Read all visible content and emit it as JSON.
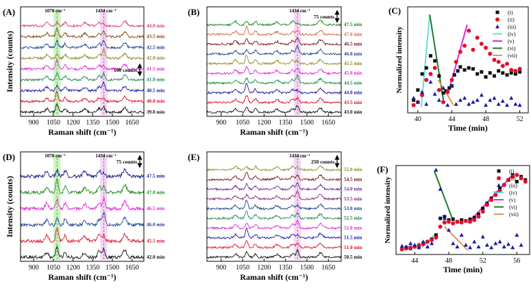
{
  "figure": {
    "axis_labels": {
      "raman_x": "Raman shift (cm⁻¹)",
      "raman_y": "Intensity (counts)",
      "kin_x": "Time (min)",
      "kin_y": "Normalized intensity"
    },
    "peak_labels": {
      "p1078": "1078 cm⁻¹",
      "p1434": "1434 cm⁻¹"
    }
  },
  "chart_data": [
    {
      "panel": "(A)",
      "type": "line",
      "subtype": "stacked_spectra",
      "xlabel": "Raman shift (cm⁻¹)",
      "ylabel": "Intensity (counts)",
      "xlim": [
        800,
        1740
      ],
      "xticks": [
        900,
        1050,
        1200,
        1350,
        1500,
        1650
      ],
      "highlight_bands": [
        1078,
        1434
      ],
      "peak_annotations": [
        "1078 cm⁻¹",
        "1434 cm⁻¹"
      ],
      "scale_bar": "100 counts",
      "series": [
        {
          "name": "44.0 min",
          "color": "#d8416b"
        },
        {
          "name": "43.5 min",
          "color": "#8b4513"
        },
        {
          "name": "42.5 min",
          "color": "#1f3f8f"
        },
        {
          "name": "42.0 min",
          "color": "#8a8a2a"
        },
        {
          "name": "41.5 min",
          "color": "#e627d6"
        },
        {
          "name": "41.0 min",
          "color": "#1e8a4e"
        },
        {
          "name": "40.5 min",
          "color": "#1a1aa8"
        },
        {
          "name": "40.0 min",
          "color": "#e0102a"
        },
        {
          "name": "39.0 min",
          "color": "#111111"
        }
      ]
    },
    {
      "panel": "(B)",
      "type": "line",
      "subtype": "stacked_spectra",
      "xlabel": "Raman shift (cm⁻¹)",
      "ylabel": "",
      "xlim": [
        800,
        1740
      ],
      "xticks": [
        900,
        1050,
        1200,
        1350,
        1500,
        1650
      ],
      "highlight_bands": [
        1434
      ],
      "peak_annotations": [
        "1434 cm⁻¹"
      ],
      "scale_bar": "75 counts",
      "series": [
        {
          "name": "47.5 min",
          "color": "#1e8a1e"
        },
        {
          "name": "47.0 min",
          "color": "#d2693c"
        },
        {
          "name": "46.5 min",
          "color": "#7a1020"
        },
        {
          "name": "46.0 min",
          "color": "#1f3f8f"
        },
        {
          "name": "45.5 min",
          "color": "#8a8a2a"
        },
        {
          "name": "45.0 min",
          "color": "#e627d6"
        },
        {
          "name": "44.5 min",
          "color": "#1e8a4e"
        },
        {
          "name": "44.0 min",
          "color": "#1a1aa8"
        },
        {
          "name": "43.5 min",
          "color": "#e0102a"
        },
        {
          "name": "43.0 min",
          "color": "#111111"
        }
      ]
    },
    {
      "panel": "(C)",
      "type": "scatter",
      "xlabel": "Time (min)",
      "ylabel": "Normalized intensity",
      "xlim": [
        38.8,
        53
      ],
      "xticks": [
        40,
        44,
        48,
        52
      ],
      "ylim": [
        0,
        1
      ],
      "series": [
        {
          "name": "(i)",
          "marker": "square",
          "color": "#111111",
          "x": [
            39.5,
            40.0,
            40.5,
            41.0,
            41.5,
            42.0,
            42.5,
            43.0,
            43.3,
            43.7,
            44.0,
            44.3,
            44.7,
            45.0,
            45.5,
            46.0,
            46.5,
            47.0,
            47.5,
            48.0,
            48.5,
            49.0,
            49.5,
            50.0,
            50.5,
            51.0,
            51.5,
            52.0
          ],
          "y": [
            0.1,
            0.2,
            0.36,
            0.42,
            0.54,
            0.49,
            0.34,
            0.17,
            0.19,
            0.22,
            0.24,
            0.35,
            0.39,
            0.43,
            0.4,
            0.42,
            0.41,
            0.36,
            0.38,
            0.33,
            0.37,
            0.34,
            0.39,
            0.37,
            0.35,
            0.37,
            0.36,
            0.38
          ]
        },
        {
          "name": "(ii)",
          "marker": "circle",
          "color": "#e0102a",
          "x": [
            39.5,
            40.0,
            40.5,
            41.0,
            41.5,
            42.0,
            42.5,
            43.0,
            43.5,
            44.0,
            44.5,
            45.0,
            45.5,
            46.0,
            46.5,
            47.0,
            47.5,
            48.0,
            48.5,
            49.0,
            49.5,
            50.0,
            50.5,
            51.0,
            51.5,
            52.0
          ],
          "y": [
            0.05,
            0.08,
            0.15,
            0.3,
            0.36,
            0.42,
            0.2,
            0.08,
            0.18,
            0.3,
            0.48,
            0.58,
            0.64,
            0.79,
            0.6,
            0.72,
            0.66,
            0.62,
            0.56,
            0.5,
            0.48,
            0.44,
            0.46,
            0.4,
            0.39,
            0.41
          ]
        },
        {
          "name": "(iii)",
          "marker": "triangle",
          "color": "#1a1aa8",
          "x": [
            39.5,
            40.0,
            40.5,
            41.0,
            41.5,
            42.0,
            42.5,
            43.0,
            43.5,
            44.0,
            44.5,
            45.0,
            45.5,
            46.0,
            46.5,
            47.0,
            47.5,
            48.0,
            48.5,
            49.0,
            49.5,
            50.0,
            50.5,
            51.0,
            51.5,
            52.0
          ],
          "y": [
            0.12,
            0.08,
            0.18,
            0.06,
            0.28,
            0.16,
            0.1,
            0.22,
            0.05,
            0.24,
            0.06,
            0.1,
            0.12,
            0.06,
            0.08,
            0.1,
            0.15,
            0.05,
            0.1,
            0.12,
            0.06,
            0.09,
            0.05,
            0.12,
            0.06,
            0.05
          ]
        },
        {
          "name": "(iv)",
          "marker": "line",
          "color": "#5ee0e0",
          "x": [
            40.4,
            41.4
          ],
          "y": [
            0.03,
            0.95
          ]
        },
        {
          "name": "(v)",
          "marker": "line",
          "color": "#e627d6",
          "x": [
            43.6,
            45.8
          ],
          "y": [
            0.18,
            0.85
          ]
        },
        {
          "name": "(vi)",
          "marker": "line",
          "color": "#1e7a2a",
          "x": [
            41.4,
            43.0
          ],
          "y": [
            0.95,
            0.1
          ]
        },
        {
          "name": "(vii)",
          "marker": "line",
          "color": "#e8905a",
          "x": [
            42.4,
            44.2
          ],
          "y": [
            0.3,
            0.05
          ]
        }
      ]
    },
    {
      "panel": "(D)",
      "type": "line",
      "subtype": "stacked_spectra",
      "xlabel": "Raman shift (cm⁻¹)",
      "ylabel": "Intensity (counts)",
      "xlim": [
        800,
        1740
      ],
      "xticks": [
        900,
        1050,
        1200,
        1350,
        1500,
        1650
      ],
      "highlight_bands": [
        1078,
        1434
      ],
      "peak_annotations": [
        "1078 cm⁻¹",
        "1434 cm⁻¹"
      ],
      "scale_bar": "75 counts",
      "series": [
        {
          "name": "47.5 min",
          "color": "#1a1a8a"
        },
        {
          "name": "47.0 min",
          "color": "#1e8a1e"
        },
        {
          "name": "46.5 min",
          "color": "#e627d6"
        },
        {
          "name": "46.0 min",
          "color": "#1f3f8f"
        },
        {
          "name": "45.5 min",
          "color": "#e0102a"
        },
        {
          "name": "42.0 min",
          "color": "#111111"
        }
      ]
    },
    {
      "panel": "(E)",
      "type": "line",
      "subtype": "stacked_spectra",
      "xlabel": "Raman shift (cm⁻¹)",
      "ylabel": "",
      "xlim": [
        800,
        1740
      ],
      "xticks": [
        900,
        1050,
        1200,
        1350,
        1500,
        1650
      ],
      "highlight_bands": [
        1434
      ],
      "peak_annotations": [
        "1434 cm⁻¹"
      ],
      "scale_bar": "250 counts",
      "series": [
        {
          "name": "55.0 min",
          "color": "#8a8a2a"
        },
        {
          "name": "54.5 min",
          "color": "#7a1020"
        },
        {
          "name": "54.0 min",
          "color": "#6a2a9a"
        },
        {
          "name": "53.5 min",
          "color": "#8a2a7a"
        },
        {
          "name": "53.0 min",
          "color": "#1f3f8f"
        },
        {
          "name": "52.5 min",
          "color": "#1e8a4e"
        },
        {
          "name": "52.0 min",
          "color": "#e627d6"
        },
        {
          "name": "51.5 min",
          "color": "#1a1aa8"
        },
        {
          "name": "51.0 min",
          "color": "#e0102a"
        },
        {
          "name": "50.5 min",
          "color": "#111111"
        }
      ]
    },
    {
      "panel": "(F)",
      "type": "scatter",
      "xlabel": "Time (min)",
      "ylabel": "Normalized intensity",
      "xlim": [
        41.8,
        57.5
      ],
      "xticks": [
        44,
        48,
        52,
        56
      ],
      "ylim": [
        0,
        1
      ],
      "series": [
        {
          "name": "(i)",
          "marker": "square",
          "color": "#111111",
          "x": [
            42.5,
            43.0,
            43.5,
            44.0,
            44.5,
            45.0,
            45.5,
            46.0,
            46.5,
            47.0,
            47.5,
            48.0,
            48.5,
            49.0,
            49.5,
            50.0,
            50.5,
            51.0,
            51.5,
            52.0,
            52.5,
            53.0,
            53.5,
            54.0,
            54.5,
            55.0,
            55.5,
            56.0,
            56.5,
            57.0
          ],
          "y": [
            0.03,
            0.05,
            0.04,
            0.06,
            0.07,
            0.1,
            0.12,
            0.15,
            0.2,
            0.4,
            0.42,
            0.38,
            0.39,
            0.36,
            0.38,
            0.37,
            0.39,
            0.41,
            0.45,
            0.52,
            0.58,
            0.64,
            0.7,
            0.76,
            0.8,
            0.86,
            0.92,
            0.84,
            0.9,
            0.86
          ]
        },
        {
          "name": "(ii)",
          "marker": "circle",
          "color": "#e0102a",
          "x": [
            42.5,
            43.0,
            43.5,
            44.0,
            44.5,
            45.0,
            45.5,
            46.0,
            46.5,
            47.0,
            47.5,
            48.0,
            48.5,
            49.0,
            49.5,
            50.0,
            50.5,
            51.0,
            51.5,
            52.0,
            52.5,
            53.0,
            53.5,
            54.0,
            54.5,
            55.0,
            55.5,
            56.0,
            56.5,
            57.0
          ],
          "y": [
            0.03,
            0.04,
            0.05,
            0.06,
            0.08,
            0.09,
            0.12,
            0.14,
            0.17,
            0.3,
            0.35,
            0.36,
            0.34,
            0.36,
            0.35,
            0.37,
            0.36,
            0.38,
            0.42,
            0.48,
            0.56,
            0.62,
            0.68,
            0.73,
            0.8,
            0.86,
            0.9,
            0.92,
            0.88,
            0.84
          ]
        },
        {
          "name": "(iii)",
          "marker": "triangle",
          "color": "#1a1aa8",
          "x": [
            42.5,
            43.0,
            43.5,
            44.0,
            44.5,
            45.0,
            45.5,
            46.0,
            46.5,
            47.0,
            47.5,
            48.0,
            48.5,
            49.0,
            49.5,
            50.0,
            50.5,
            51.0,
            51.5,
            52.0,
            52.5,
            53.0,
            53.5,
            54.0,
            54.5,
            55.0,
            55.5,
            56.0,
            56.5
          ],
          "y": [
            0.07,
            0.06,
            0.1,
            0.08,
            0.05,
            0.12,
            0.06,
            0.1,
            0.98,
            0.75,
            0.4,
            0.26,
            0.1,
            0.06,
            0.2,
            0.08,
            0.05,
            0.12,
            0.06,
            0.18,
            0.08,
            0.05,
            0.1,
            0.12,
            0.06,
            0.09,
            0.05,
            0.2,
            0.08
          ]
        },
        {
          "name": "(iv)",
          "marker": "line",
          "color": "#5ee0e0",
          "x": [
            44.8,
            46.5
          ],
          "y": [
            0.05,
            0.22
          ]
        },
        {
          "name": "(v)",
          "marker": "line",
          "color": "#e627d6",
          "x": [
            50.6,
            55.3
          ],
          "y": [
            0.38,
            0.9
          ]
        },
        {
          "name": "(vi)",
          "marker": "line",
          "color": "#1e7a2a",
          "x": [
            46.3,
            48.4
          ],
          "y": [
            0.97,
            0.4
          ]
        },
        {
          "name": "(vii)",
          "marker": "line",
          "color": "#e8905a",
          "x": [
            47.5,
            50.2
          ],
          "y": [
            0.3,
            0.02
          ]
        }
      ]
    }
  ]
}
